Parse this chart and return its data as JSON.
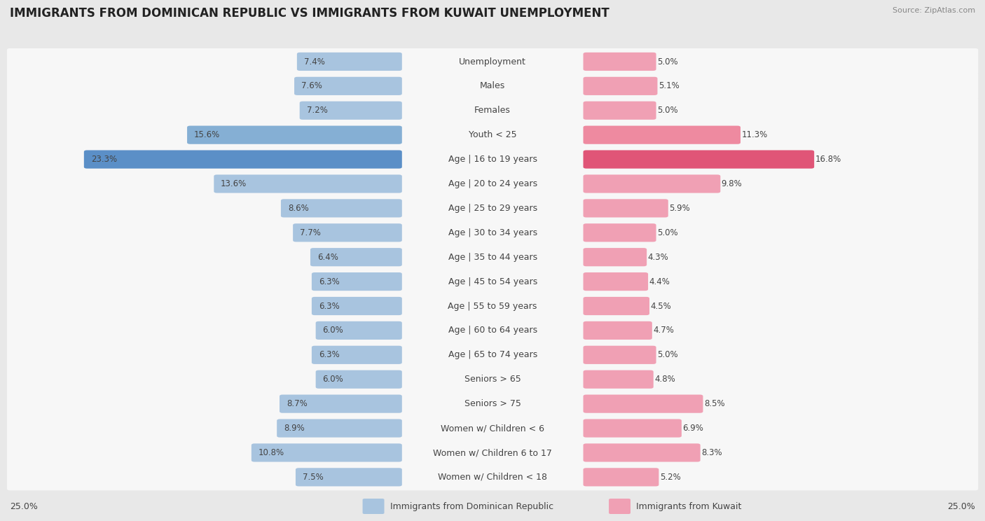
{
  "title": "IMMIGRANTS FROM DOMINICAN REPUBLIC VS IMMIGRANTS FROM KUWAIT UNEMPLOYMENT",
  "source": "Source: ZipAtlas.com",
  "categories": [
    "Unemployment",
    "Males",
    "Females",
    "Youth < 25",
    "Age | 16 to 19 years",
    "Age | 20 to 24 years",
    "Age | 25 to 29 years",
    "Age | 30 to 34 years",
    "Age | 35 to 44 years",
    "Age | 45 to 54 years",
    "Age | 55 to 59 years",
    "Age | 60 to 64 years",
    "Age | 65 to 74 years",
    "Seniors > 65",
    "Seniors > 75",
    "Women w/ Children < 6",
    "Women w/ Children 6 to 17",
    "Women w/ Children < 18"
  ],
  "left_values": [
    7.4,
    7.6,
    7.2,
    15.6,
    23.3,
    13.6,
    8.6,
    7.7,
    6.4,
    6.3,
    6.3,
    6.0,
    6.3,
    6.0,
    8.7,
    8.9,
    10.8,
    7.5
  ],
  "right_values": [
    5.0,
    5.1,
    5.0,
    11.3,
    16.8,
    9.8,
    5.9,
    5.0,
    4.3,
    4.4,
    4.5,
    4.7,
    5.0,
    4.8,
    8.5,
    6.9,
    8.3,
    5.2
  ],
  "left_color_normal": "#a8c4df",
  "left_color_medium": "#85afd4",
  "left_color_strong": "#5b8fc7",
  "right_color_normal": "#f0a0b4",
  "right_color_medium": "#ee8aa0",
  "right_color_strong": "#e05577",
  "background_color": "#e8e8e8",
  "row_bg_color": "#f7f7f7",
  "row_alt_color": "#f0f0f0",
  "axis_max": 25.0,
  "left_label": "Immigrants from Dominican Republic",
  "right_label": "Immigrants from Kuwait",
  "title_fontsize": 12,
  "cat_fontsize": 9,
  "val_fontsize": 8.5
}
